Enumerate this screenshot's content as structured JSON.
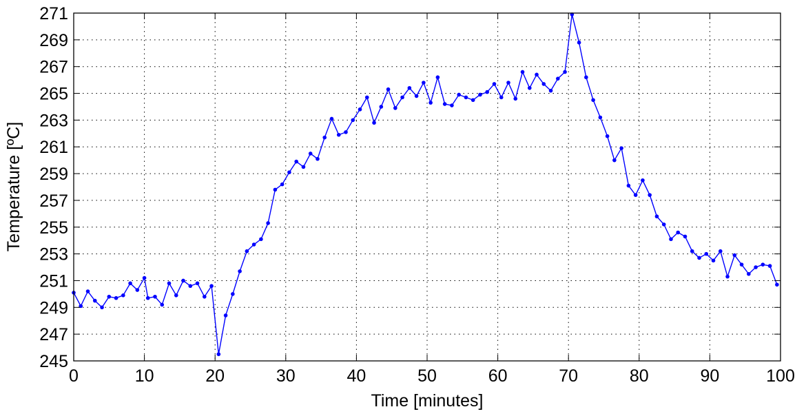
{
  "chart_data": {
    "type": "line",
    "xlabel": "Time [minutes]",
    "ylabel": "Temperature [ºC]",
    "xlim": [
      0,
      100
    ],
    "ylim": [
      245,
      271
    ],
    "xticks": [
      0,
      10,
      20,
      30,
      40,
      50,
      60,
      70,
      80,
      90,
      100
    ],
    "yticks": [
      245,
      247,
      249,
      251,
      253,
      255,
      257,
      259,
      261,
      263,
      265,
      267,
      269,
      271
    ],
    "grid": true,
    "grid_style": "dotted",
    "marker": "dot",
    "series_color": "#0000ff",
    "series": [
      {
        "x": [
          0,
          1,
          2,
          3,
          4,
          5,
          6,
          7,
          8,
          9,
          10,
          10.5,
          11.5,
          12.5,
          13.5,
          14.5,
          15.5,
          16.5,
          17.5,
          18.5,
          19.5,
          20.5,
          21.5,
          22.5,
          23.5,
          24.5,
          25.5,
          26.5,
          27.5,
          28.5,
          29.5,
          30.5,
          31.5,
          32.5,
          33.5,
          34.5,
          35.5,
          36.5,
          37.5,
          38.5,
          39.5,
          40.5,
          41.5,
          42.5,
          43.5,
          44.5,
          45.5,
          46.5,
          47.5,
          48.5,
          49.5,
          50.5,
          51.5,
          52.5,
          53.5,
          54.5,
          55.5,
          56.5,
          57.5,
          58.5,
          59.5,
          60.5,
          61.5,
          62.5,
          63.5,
          64.5,
          65.5,
          66.5,
          67.5,
          68.5,
          69.5,
          70.5,
          71.5,
          72.5,
          73.5,
          74.5,
          75.5,
          76.5,
          77.5,
          78.5,
          79.5,
          80.5,
          81.5,
          82.5,
          83.5,
          84.5,
          85.5,
          86.5,
          87.5,
          88.5,
          89.5,
          90.5,
          91.5,
          92.5,
          93.5,
          94.5,
          95.5,
          96.5,
          97.5,
          98.5,
          99.5
        ],
        "y": [
          250.1,
          249.1,
          250.2,
          249.5,
          249.0,
          249.8,
          249.7,
          249.9,
          250.8,
          250.3,
          251.2,
          249.7,
          249.8,
          249.2,
          250.8,
          249.9,
          251.0,
          250.6,
          250.8,
          249.8,
          250.6,
          245.5,
          248.4,
          250.0,
          251.7,
          253.2,
          253.7,
          254.1,
          255.3,
          257.8,
          258.2,
          259.1,
          259.9,
          259.5,
          260.5,
          260.1,
          261.7,
          263.1,
          261.9,
          262.1,
          263.0,
          263.8,
          264.7,
          262.8,
          264.0,
          265.3,
          263.9,
          264.7,
          265.4,
          264.8,
          265.8,
          264.3,
          266.2,
          264.2,
          264.1,
          264.9,
          264.7,
          264.5,
          264.9,
          265.1,
          265.7,
          264.7,
          265.8,
          264.6,
          266.6,
          265.4,
          266.4,
          265.7,
          265.2,
          266.1,
          266.6,
          270.9,
          268.8,
          266.2,
          264.5,
          263.2,
          261.8,
          260.0,
          260.9,
          258.1,
          257.4,
          258.5,
          257.4,
          255.8,
          255.2,
          254.1,
          254.6,
          254.3,
          253.2,
          252.7,
          253.0,
          252.5,
          253.2,
          251.3,
          252.9,
          252.2,
          251.5,
          252.0,
          252.2,
          252.1,
          250.7
        ]
      }
    ]
  }
}
